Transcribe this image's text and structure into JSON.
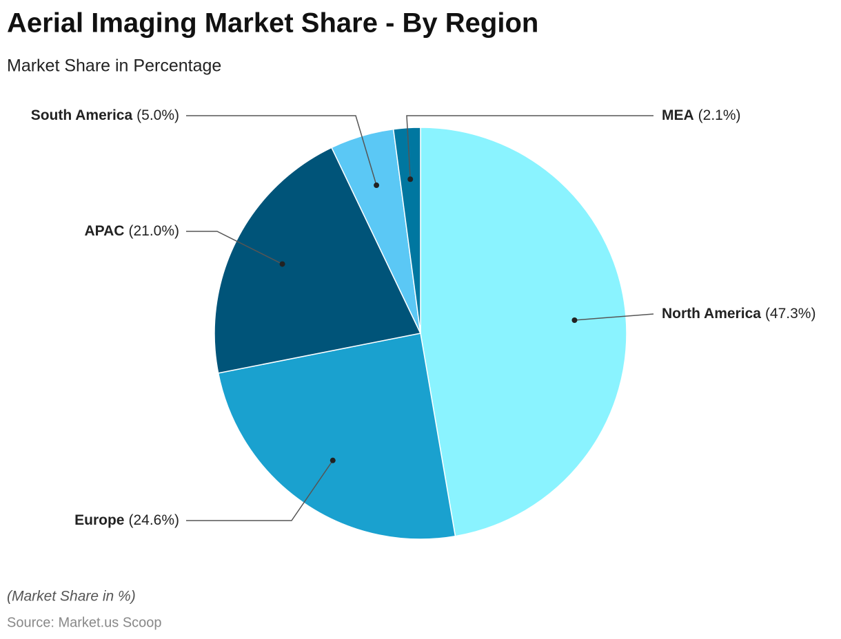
{
  "chart_data": {
    "type": "pie",
    "title": "Aerial Imaging Market Share - By Region",
    "subtitle": "Market Share in Percentage",
    "categories": [
      "North America",
      "Europe",
      "APAC",
      "South America",
      "MEA"
    ],
    "values": [
      47.3,
      24.6,
      21.0,
      5.0,
      2.1
    ],
    "value_labels": [
      "(47.3%)",
      "(24.6%)",
      "(21.0%)",
      "(5.0%)",
      "(2.1%)"
    ],
    "colors": [
      "#8af3ff",
      "#1aa1cf",
      "#005479",
      "#5bc8f5",
      "#0077a0"
    ],
    "note": "(Market Share in %)",
    "source": "Source: Market.us Scoop"
  }
}
